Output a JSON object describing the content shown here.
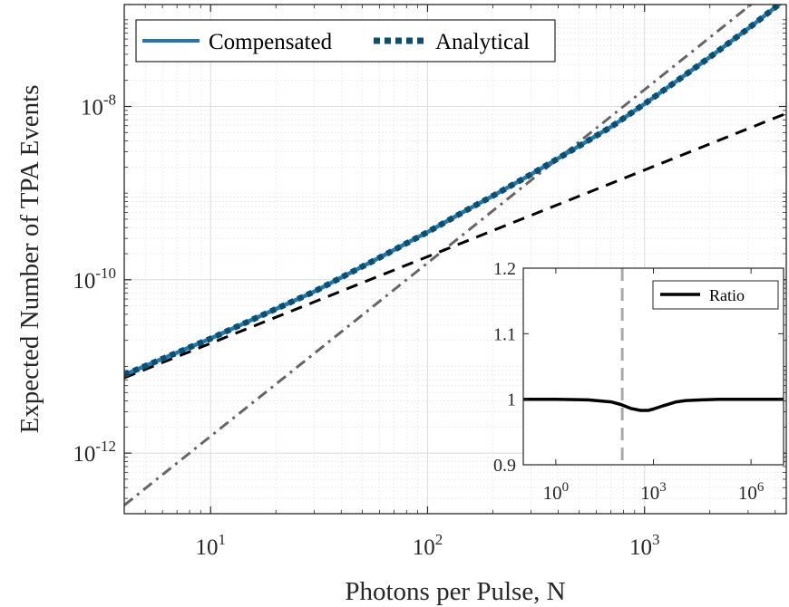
{
  "chart_data": [
    {
      "type": "line",
      "xscale": "log",
      "yscale": "log",
      "xlabel": "Photons per Pulse, N",
      "ylabel": "Expected Number of TPA Events",
      "xlim": [
        4,
        4500
      ],
      "ylim": [
        2e-13,
        1.5e-07
      ],
      "xticks": [
        {
          "value": 10,
          "label": "10",
          "exp": "1"
        },
        {
          "value": 100,
          "label": "10",
          "exp": "2"
        },
        {
          "value": 1000,
          "label": "10",
          "exp": "3"
        }
      ],
      "yticks": [
        {
          "value": 1e-12,
          "label": "10",
          "exp": "-12"
        },
        {
          "value": 1e-10,
          "label": "10",
          "exp": "-10"
        },
        {
          "value": 1e-08,
          "label": "10",
          "exp": "-8"
        }
      ],
      "grid": true,
      "legend": {
        "position": "top-left",
        "entries": [
          "Compensated",
          "Analytical"
        ]
      },
      "series": [
        {
          "name": "Compensated",
          "style": "solid",
          "color": "#1f77b4",
          "x": [
            4,
            10,
            30,
            60,
            100,
            150,
            200,
            300,
            500,
            700,
            1000,
            1500,
            2000,
            3000,
            4500
          ],
          "y": [
            8e-12,
            2.1e-11,
            7.3e-11,
            1.8e-10,
            3.55e-10,
            6.3e-10,
            9.3e-10,
            1.65e-09,
            3.5e-09,
            5.8e-09,
            1.07e-08,
            2.2e-08,
            3.7e-08,
            7.9e-08,
            1.75e-07
          ]
        },
        {
          "name": "Analytical",
          "style": "dotted",
          "color": "#0b4f6c",
          "x": [
            4,
            10,
            30,
            60,
            100,
            150,
            200,
            300,
            500,
            700,
            1000,
            1500,
            2000,
            3000,
            4500
          ],
          "y": [
            8e-12,
            2.1e-11,
            7.3e-11,
            1.8e-10,
            3.55e-10,
            6.3e-10,
            9.3e-10,
            1.65e-09,
            3.5e-09,
            5.8e-09,
            1.07e-08,
            2.2e-08,
            3.7e-08,
            7.9e-08,
            1.75e-07
          ]
        },
        {
          "style": "dashed",
          "color": "#000000",
          "x": [
            4,
            4500
          ],
          "y": [
            7.4e-12,
            8.3e-09
          ]
        },
        {
          "style": "dash-dot",
          "color": "#666666",
          "x": [
            4,
            4500
          ],
          "y": [
            2.5e-13,
            3.17e-07
          ]
        }
      ]
    },
    {
      "type": "line",
      "xscale": "log",
      "xlim": [
        0.1,
        10000000
      ],
      "ylim": [
        0.9,
        1.2
      ],
      "xticks": [
        {
          "value": 1,
          "label": "10",
          "exp": "0"
        },
        {
          "value": 1000,
          "label": "10",
          "exp": "3"
        },
        {
          "value": 1000000,
          "label": "10",
          "exp": "6"
        }
      ],
      "yticks": [
        {
          "value": 0.9,
          "label": "0.9"
        },
        {
          "value": 1,
          "label": "1"
        },
        {
          "value": 1.1,
          "label": "1.1"
        },
        {
          "value": 1.2,
          "label": "1.2"
        }
      ],
      "legend": {
        "position": "top-right",
        "entries": [
          "Ratio"
        ]
      },
      "vline": {
        "x": 110,
        "style": "dashed",
        "color": "#aaaaaa"
      },
      "series": [
        {
          "name": "Ratio",
          "style": "solid",
          "color": "#000000",
          "x": [
            0.1,
            1,
            10,
            50,
            100,
            200,
            400,
            700,
            1000,
            2000,
            5000,
            10000,
            30000,
            100000,
            1000000,
            10000000
          ],
          "y": [
            1.0,
            1.0,
            0.999,
            0.996,
            0.992,
            0.986,
            0.983,
            0.983,
            0.985,
            0.99,
            0.996,
            0.998,
            0.999,
            1.0,
            1.0,
            1.0
          ]
        }
      ]
    }
  ]
}
